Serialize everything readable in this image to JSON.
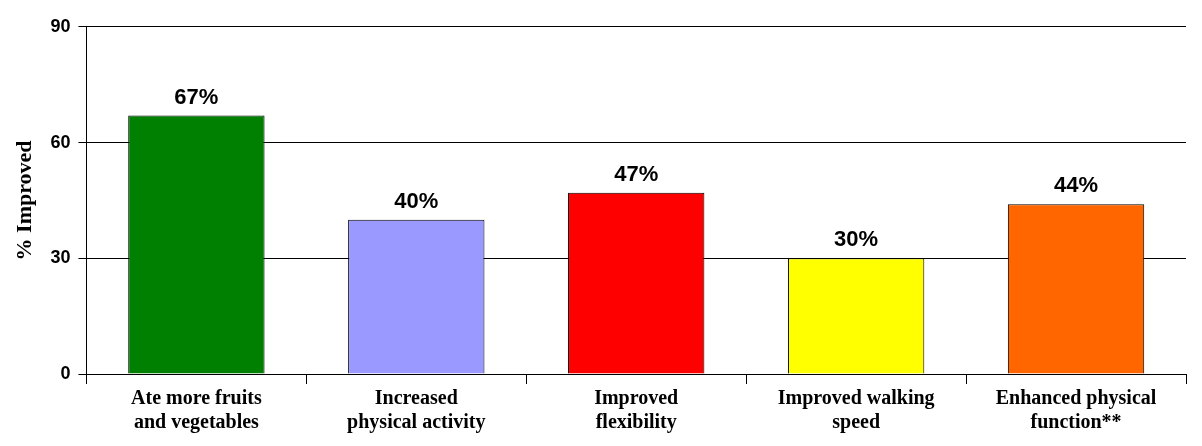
{
  "chart_data": {
    "type": "bar",
    "ylabel": "% Improved",
    "categories": [
      "Ate more fruits and vegetables",
      "Increased physical activity",
      "Improved flexibility",
      "Improved walking speed",
      "Enhanced physical function**"
    ],
    "values": [
      67,
      40,
      47,
      30,
      44
    ],
    "colors": [
      "#008000",
      "#9999ff",
      "#ff0000",
      "#ffff00",
      "#ff6600"
    ],
    "value_labels": [
      "67%",
      "40%",
      "47%",
      "30%",
      "44%"
    ],
    "ylim": [
      0,
      90
    ],
    "yticks": [
      0,
      30,
      60,
      90
    ],
    "grid": "y",
    "legend": false
  }
}
